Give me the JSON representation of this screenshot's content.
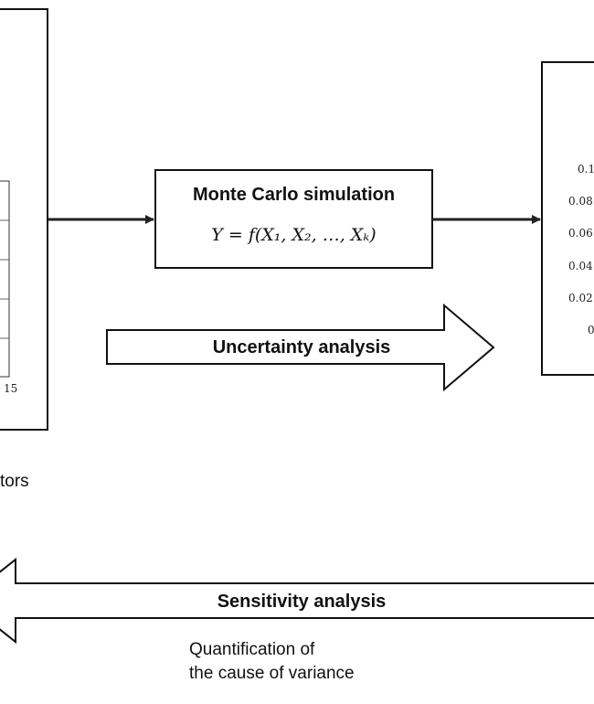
{
  "monte_carlo": {
    "title": "Monte Carlo simulation",
    "formula": "Y = f(X₁, X₂, …, Xₖ)"
  },
  "uncertainty_arrow": {
    "label": "Uncertainty analysis"
  },
  "sensitivity_arrow": {
    "label": "Sensitivity analysis",
    "note_line1": "Quantification of",
    "note_line2": "the cause of variance"
  },
  "left_panel": {
    "caption_fragment": "tors",
    "x_tick_fragment": "15"
  },
  "right_panel": {
    "y_ticks": [
      "0.1",
      "0.08",
      "0.06",
      "0.04",
      "0.02",
      "0"
    ]
  }
}
